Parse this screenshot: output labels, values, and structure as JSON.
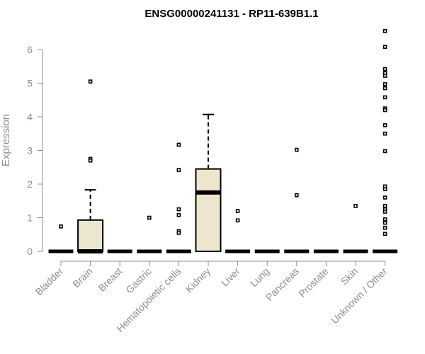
{
  "chart_data": {
    "type": "box",
    "title": "ENSG00000241131 - RP11-639B1.1",
    "ylabel": "Expression",
    "ylim": [
      0,
      6.6
    ],
    "yticks": [
      0,
      1,
      2,
      3,
      4,
      5,
      6
    ],
    "grid": false,
    "categories": [
      "Bladder",
      "Brain",
      "Breast",
      "Gastric",
      "Hematopoietic cells",
      "Kidney",
      "Liver",
      "Lung",
      "Pancreas",
      "Prostate",
      "Skin",
      "Unknown / Other"
    ],
    "boxes": [
      {
        "q1": 0,
        "median": 0,
        "q3": 0,
        "whisker_low": 0,
        "whisker_high": 0,
        "outliers": [
          0.74
        ]
      },
      {
        "q1": 0,
        "median": 0,
        "q3": 0.93,
        "whisker_low": 0,
        "whisker_high": 1.83,
        "outliers": [
          5.05,
          2.75,
          2.7
        ]
      },
      {
        "q1": 0,
        "median": 0,
        "q3": 0,
        "whisker_low": 0,
        "whisker_high": 0,
        "outliers": []
      },
      {
        "q1": 0,
        "median": 0,
        "q3": 0,
        "whisker_low": 0,
        "whisker_high": 0,
        "outliers": [
          1.0
        ]
      },
      {
        "q1": 0,
        "median": 0,
        "q3": 0,
        "whisker_low": 0,
        "whisker_high": 0,
        "outliers": [
          3.17,
          2.42,
          1.25,
          1.08,
          0.6,
          0.55
        ]
      },
      {
        "q1": 0,
        "median": 1.75,
        "q3": 2.45,
        "whisker_low": 0,
        "whisker_high": 4.07,
        "outliers": []
      },
      {
        "q1": 0,
        "median": 0,
        "q3": 0,
        "whisker_low": 0,
        "whisker_high": 0,
        "outliers": [
          1.2,
          0.92
        ]
      },
      {
        "q1": 0,
        "median": 0,
        "q3": 0,
        "whisker_low": 0,
        "whisker_high": 0,
        "outliers": []
      },
      {
        "q1": 0,
        "median": 0,
        "q3": 0,
        "whisker_low": 0,
        "whisker_high": 0,
        "outliers": [
          3.02,
          1.67
        ]
      },
      {
        "q1": 0,
        "median": 0,
        "q3": 0,
        "whisker_low": 0,
        "whisker_high": 0,
        "outliers": []
      },
      {
        "q1": 0,
        "median": 0,
        "q3": 0,
        "whisker_low": 0,
        "whisker_high": 0,
        "outliers": [
          1.35
        ]
      },
      {
        "q1": 0,
        "median": 0,
        "q3": 0,
        "whisker_low": 0,
        "whisker_high": 0,
        "outliers": [
          6.55,
          6.08,
          5.42,
          5.3,
          5.22,
          4.97,
          4.85,
          4.58,
          4.25,
          4.2,
          3.75,
          3.5,
          2.98,
          1.93,
          1.85,
          1.6,
          1.35,
          1.25,
          1.18,
          0.95,
          0.85,
          0.7,
          0.52
        ]
      }
    ]
  }
}
